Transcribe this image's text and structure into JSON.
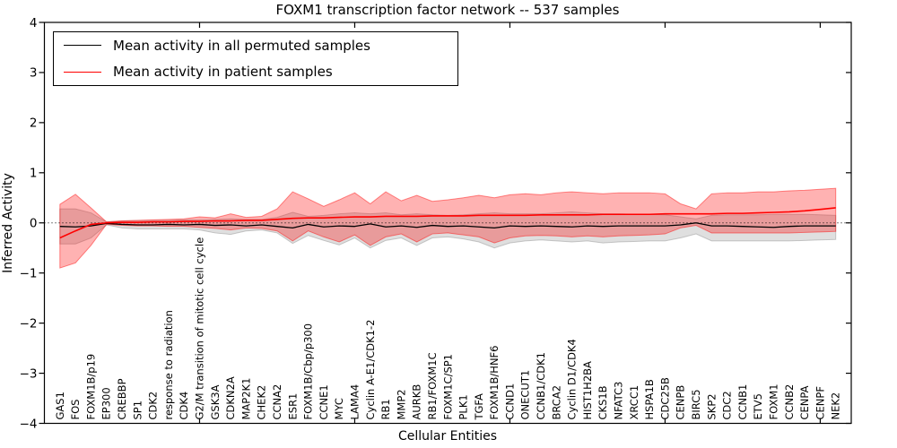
{
  "figure": {
    "title": "FOXM1 transcription factor network -- 537 samples"
  },
  "legend": {
    "items": [
      {
        "label": "Mean activity in all permuted samples",
        "color": "#000000"
      },
      {
        "label": "Mean activity in patient samples",
        "color": "#ff0000"
      }
    ]
  },
  "chart_data": {
    "type": "line",
    "title": "FOXM1 transcription factor network -- 537 samples",
    "xlabel": "Cellular Entities",
    "ylabel": "Inferred Activity",
    "ylim": [
      -4,
      4
    ],
    "xlim": [
      0,
      52
    ],
    "yticks": [
      4,
      3,
      2,
      1,
      0,
      -1,
      -2,
      -3,
      -4
    ],
    "xtick_positions": [
      10,
      20,
      30,
      40,
      50
    ],
    "grid": false,
    "zero_reference_line": true,
    "legend_position": "upper left",
    "categories": [
      "GAS1",
      "FOS",
      "FOXM1B/p19",
      "EP300",
      "CREBBP",
      "SP1",
      "CDK2",
      "response to radiation",
      "CDK4",
      "G2/M transition of mitotic cell cycle",
      "GSK3A",
      "CDKN2A",
      "MAP2K1",
      "CHEK2",
      "CCNA2",
      "ESR1",
      "FOXM1B/Cbp/p300",
      "CCNE1",
      "MYC",
      "LAMA4",
      "Cyclin A-E1/CDK1-2",
      "RB1",
      "MMP2",
      "AURKB",
      "RB1/FOXM1C",
      "FOXM1C/SP1",
      "PLK1",
      "TGFA",
      "FOXM1B/HNF6",
      "CCND1",
      "ONECUT1",
      "CCNB1/CDK1",
      "BRCA2",
      "Cyclin D1/CDK4",
      "HIST1H2BA",
      "CKS1B",
      "NFATC3",
      "XRCC1",
      "HSPA1B",
      "CDC25B",
      "CENPB",
      "BIRC5",
      "SKP2",
      "CDC2",
      "CCNB1",
      "ETV5",
      "FOXM1",
      "CCNB2",
      "CENPA",
      "CENPF",
      "NEK2"
    ],
    "series": [
      {
        "name": "Mean activity in all permuted samples",
        "color": "#000000",
        "linewidth": 1.3,
        "values": [
          -0.07,
          -0.08,
          -0.06,
          -0.01,
          -0.03,
          -0.04,
          -0.04,
          -0.03,
          -0.04,
          -0.03,
          -0.05,
          -0.04,
          -0.06,
          -0.04,
          -0.07,
          -0.1,
          -0.03,
          -0.08,
          -0.06,
          -0.07,
          -0.02,
          -0.08,
          -0.06,
          -0.09,
          -0.05,
          -0.07,
          -0.06,
          -0.08,
          -0.1,
          -0.06,
          -0.07,
          -0.06,
          -0.07,
          -0.08,
          -0.06,
          -0.07,
          -0.06,
          -0.06,
          -0.06,
          -0.06,
          -0.04,
          0.0,
          -0.06,
          -0.06,
          -0.07,
          -0.08,
          -0.09,
          -0.07,
          -0.06,
          -0.06,
          -0.06
        ]
      },
      {
        "name": "Mean activity in patient samples",
        "color": "#ff0000",
        "linewidth": 1.6,
        "values": [
          -0.3,
          -0.16,
          -0.03,
          0.0,
          0.01,
          0.01,
          0.02,
          0.02,
          0.03,
          0.03,
          0.04,
          0.04,
          0.05,
          0.05,
          0.07,
          0.09,
          0.1,
          0.1,
          0.11,
          0.12,
          0.12,
          0.13,
          0.13,
          0.13,
          0.14,
          0.14,
          0.14,
          0.15,
          0.15,
          0.15,
          0.15,
          0.16,
          0.16,
          0.16,
          0.16,
          0.17,
          0.17,
          0.17,
          0.17,
          0.18,
          0.18,
          0.18,
          0.18,
          0.19,
          0.19,
          0.2,
          0.21,
          0.22,
          0.24,
          0.27,
          0.3
        ]
      }
    ],
    "bands": [
      {
        "name": "permuted-samples-range",
        "color": "#808080",
        "opacity": 0.25,
        "upper": [
          0.28,
          0.28,
          0.2,
          0.02,
          0.04,
          0.05,
          0.05,
          0.05,
          0.06,
          0.06,
          0.07,
          0.08,
          0.07,
          0.07,
          0.11,
          0.21,
          0.13,
          0.15,
          0.18,
          0.2,
          0.18,
          0.2,
          0.16,
          0.18,
          0.16,
          0.15,
          0.16,
          0.18,
          0.2,
          0.18,
          0.18,
          0.18,
          0.2,
          0.22,
          0.2,
          0.18,
          0.18,
          0.17,
          0.17,
          0.16,
          0.12,
          0.08,
          0.15,
          0.16,
          0.16,
          0.16,
          0.17,
          0.17,
          0.17,
          0.16,
          0.15
        ],
        "lower": [
          -0.42,
          -0.42,
          -0.3,
          -0.04,
          -0.1,
          -0.12,
          -0.12,
          -0.12,
          -0.12,
          -0.14,
          -0.2,
          -0.23,
          -0.16,
          -0.14,
          -0.2,
          -0.41,
          -0.25,
          -0.35,
          -0.44,
          -0.3,
          -0.5,
          -0.35,
          -0.3,
          -0.45,
          -0.3,
          -0.28,
          -0.32,
          -0.38,
          -0.5,
          -0.4,
          -0.36,
          -0.34,
          -0.36,
          -0.38,
          -0.36,
          -0.4,
          -0.38,
          -0.37,
          -0.36,
          -0.36,
          -0.3,
          -0.22,
          -0.36,
          -0.36,
          -0.36,
          -0.36,
          -0.36,
          -0.36,
          -0.35,
          -0.34,
          -0.33
        ]
      },
      {
        "name": "patient-samples-range",
        "color": "#ff0000",
        "opacity": 0.3,
        "upper": [
          0.37,
          0.57,
          0.3,
          0.02,
          0.04,
          0.05,
          0.06,
          0.07,
          0.08,
          0.12,
          0.1,
          0.18,
          0.11,
          0.13,
          0.28,
          0.62,
          0.48,
          0.33,
          0.46,
          0.6,
          0.38,
          0.62,
          0.44,
          0.55,
          0.43,
          0.46,
          0.5,
          0.55,
          0.5,
          0.56,
          0.58,
          0.56,
          0.6,
          0.62,
          0.6,
          0.58,
          0.6,
          0.6,
          0.6,
          0.58,
          0.38,
          0.28,
          0.58,
          0.6,
          0.6,
          0.62,
          0.62,
          0.64,
          0.65,
          0.67,
          0.69
        ],
        "lower": [
          -0.9,
          -0.8,
          -0.45,
          -0.03,
          -0.05,
          -0.06,
          -0.06,
          -0.07,
          -0.07,
          -0.09,
          -0.11,
          -0.14,
          -0.1,
          -0.11,
          -0.16,
          -0.36,
          -0.16,
          -0.28,
          -0.38,
          -0.24,
          -0.45,
          -0.28,
          -0.22,
          -0.38,
          -0.22,
          -0.2,
          -0.24,
          -0.28,
          -0.4,
          -0.3,
          -0.26,
          -0.25,
          -0.26,
          -0.28,
          -0.26,
          -0.28,
          -0.26,
          -0.25,
          -0.24,
          -0.22,
          -0.1,
          -0.05,
          -0.2,
          -0.2,
          -0.2,
          -0.2,
          -0.2,
          -0.2,
          -0.19,
          -0.18,
          -0.17
        ]
      }
    ]
  }
}
